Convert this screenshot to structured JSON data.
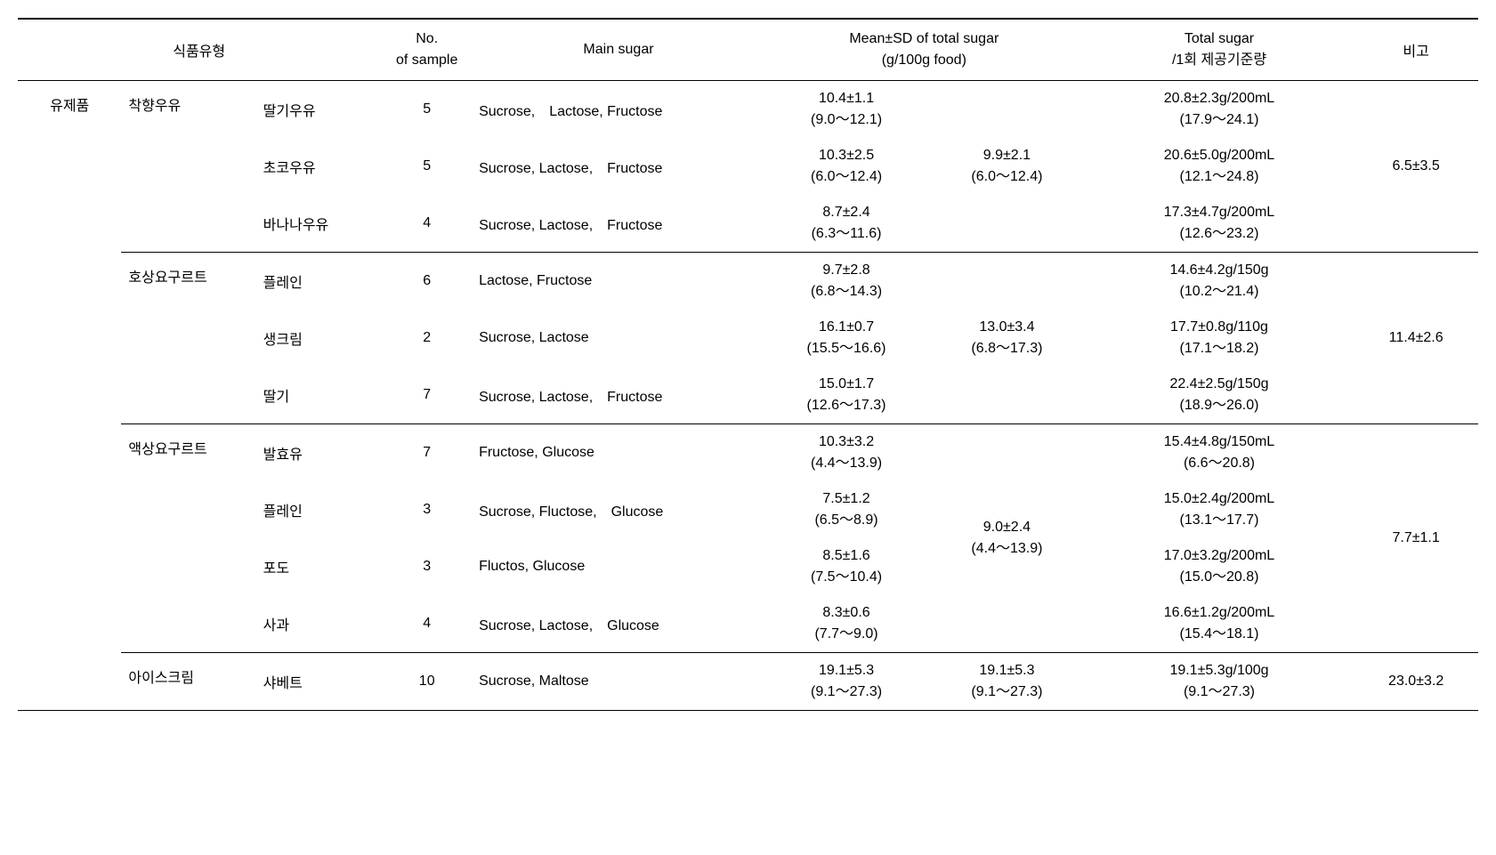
{
  "headers": {
    "foodType": "식품유형",
    "noSample": "No.\nof sample",
    "mainSugar": "Main sugar",
    "meanSd": "Mean±SD of total sugar\n(g/100g food)",
    "serving": "Total sugar\n/1회 제공기준량",
    "note": "비고"
  },
  "category1": "유제품",
  "groups": [
    {
      "cat2": "착향우유",
      "groupMean": "9.9±2.1\n(6.0～12.4)",
      "note": "6.5±3.5",
      "rows": [
        {
          "cat3": "딸기우유",
          "n": "5",
          "main": "Sucrose,　Lactose, Fructose",
          "mean": "10.4±1.1\n(9.0～12.1)",
          "serving": "20.8±2.3g/200mL\n(17.9～24.1)"
        },
        {
          "cat3": "초코우유",
          "n": "5",
          "main": "Sucrose, Lactose,　Fructose",
          "mean": "10.3±2.5\n(6.0～12.4)",
          "serving": "20.6±5.0g/200mL\n(12.1～24.8)"
        },
        {
          "cat3": "바나나우유",
          "n": "4",
          "main": "Sucrose, Lactose,　Fructose",
          "mean": "8.7±2.4\n(6.3～11.6)",
          "serving": "17.3±4.7g/200mL\n(12.6～23.2)"
        }
      ]
    },
    {
      "cat2": "호상요구르트",
      "groupMean": "13.0±3.4\n(6.8～17.3)",
      "note": "11.4±2.6",
      "rows": [
        {
          "cat3": "플레인",
          "n": "6",
          "main": "Lactose, Fructose",
          "mean": "9.7±2.8\n(6.8～14.3)",
          "serving": "14.6±4.2g/150g\n(10.2～21.4)"
        },
        {
          "cat3": "생크림",
          "n": "2",
          "main": "Sucrose, Lactose",
          "mean": "16.1±0.7\n(15.5～16.6)",
          "serving": "17.7±0.8g/110g\n(17.1～18.2)"
        },
        {
          "cat3": "딸기",
          "n": "7",
          "main": "Sucrose, Lactose,　Fructose",
          "mean": "15.0±1.7\n(12.6～17.3)",
          "serving": "22.4±2.5g/150g\n(18.9～26.0)"
        }
      ]
    },
    {
      "cat2": "액상요구르트",
      "groupMean": "9.0±2.4\n(4.4～13.9)",
      "note": "7.7±1.1",
      "rows": [
        {
          "cat3": "발효유",
          "n": "7",
          "main": "Fructose, Glucose",
          "mean": "10.3±3.2\n(4.4～13.9)",
          "serving": "15.4±4.8g/150mL\n(6.6～20.8)"
        },
        {
          "cat3": "플레인",
          "n": "3",
          "main": "Sucrose, Fluctose,　Glucose",
          "mean": "7.5±1.2\n(6.5～8.9)",
          "serving": "15.0±2.4g/200mL\n(13.1～17.7)"
        },
        {
          "cat3": "포도",
          "n": "3",
          "main": "Fluctos, Glucose",
          "mean": "8.5±1.6\n(7.5～10.4)",
          "serving": "17.0±3.2g/200mL\n(15.0～20.8)"
        },
        {
          "cat3": "사과",
          "n": "4",
          "main": "Sucrose, Lactose,　Glucose",
          "mean": "8.3±0.6\n(7.7～9.0)",
          "serving": "16.6±1.2g/200mL\n(15.4～18.1)"
        }
      ]
    },
    {
      "cat2": "아이스크림",
      "groupMean": "19.1±5.3\n(9.1～27.3)",
      "note": "23.0±3.2",
      "rows": [
        {
          "cat3": "샤베트",
          "n": "10",
          "main": "Sucrose, Maltose",
          "mean": "19.1±5.3\n(9.1～27.3)",
          "serving": "19.1±5.3g/100g\n(9.1～27.3)"
        }
      ]
    }
  ],
  "colors": {
    "background": "#ffffff",
    "text": "#000000",
    "border": "#000000"
  }
}
